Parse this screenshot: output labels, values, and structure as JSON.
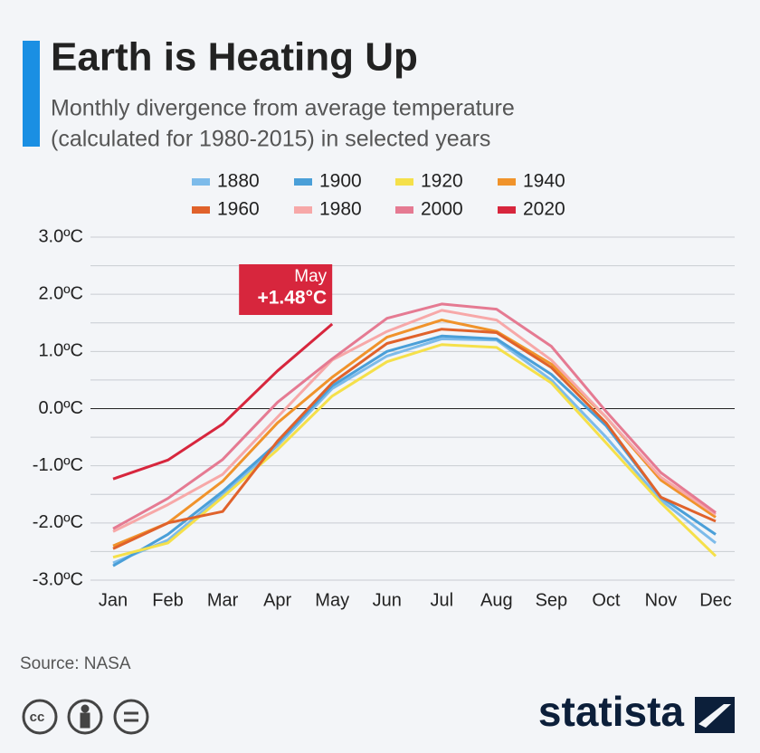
{
  "chart_data": {
    "type": "line",
    "title": "Earth is Heating Up",
    "subtitle": [
      "Monthly divergence from average temperature",
      "(calculated for 1980-2015) in selected years"
    ],
    "categories": [
      "Jan",
      "Feb",
      "Mar",
      "Apr",
      "May",
      "Jun",
      "Jul",
      "Aug",
      "Sep",
      "Oct",
      "Nov",
      "Dec"
    ],
    "series": [
      {
        "name": "1880",
        "color": "#7dbbea",
        "values": [
          -2.7,
          -2.3,
          -1.5,
          -0.65,
          0.35,
          0.92,
          1.22,
          1.2,
          0.5,
          -0.5,
          -1.6,
          -2.35
        ]
      },
      {
        "name": "1900",
        "color": "#4a9fd8",
        "values": [
          -2.75,
          -2.2,
          -1.45,
          -0.6,
          0.4,
          1.0,
          1.27,
          1.22,
          0.6,
          -0.3,
          -1.55,
          -2.2
        ]
      },
      {
        "name": "1920",
        "color": "#f5e04a",
        "values": [
          -2.6,
          -2.35,
          -1.55,
          -0.72,
          0.22,
          0.82,
          1.12,
          1.07,
          0.45,
          -0.6,
          -1.65,
          -2.58
        ]
      },
      {
        "name": "1940",
        "color": "#f0932b",
        "values": [
          -2.4,
          -2.0,
          -1.27,
          -0.25,
          0.55,
          1.25,
          1.55,
          1.35,
          0.78,
          -0.15,
          -1.25,
          -1.9
        ]
      },
      {
        "name": "1960",
        "color": "#e0622b",
        "values": [
          -2.45,
          -2.0,
          -1.8,
          -0.57,
          0.45,
          1.14,
          1.39,
          1.33,
          0.72,
          -0.25,
          -1.55,
          -1.97
        ]
      },
      {
        "name": "1980",
        "color": "#f7a8a8",
        "values": [
          -2.15,
          -1.68,
          -1.15,
          -0.15,
          0.85,
          1.35,
          1.72,
          1.55,
          0.85,
          -0.15,
          -1.2,
          -1.85
        ]
      },
      {
        "name": "2000",
        "color": "#e57a92",
        "values": [
          -2.1,
          -1.57,
          -0.89,
          0.11,
          0.87,
          1.58,
          1.83,
          1.74,
          1.09,
          -0.05,
          -1.12,
          -1.82
        ]
      },
      {
        "name": "2020",
        "color": "#d7263d",
        "values": [
          -1.23,
          -0.9,
          -0.27,
          0.66,
          1.48,
          null,
          null,
          null,
          null,
          null,
          null,
          null
        ]
      }
    ],
    "ylim": [
      -3,
      3
    ],
    "yticks": [
      {
        "value": 3,
        "label": "3.0ºC"
      },
      {
        "value": 2,
        "label": "2.0ºC"
      },
      {
        "value": 1,
        "label": "1.0ºC"
      },
      {
        "value": 0,
        "label": "0.0ºC"
      },
      {
        "value": -1,
        "label": "-1.0ºC"
      },
      {
        "value": -2,
        "label": "-2.0ºC"
      },
      {
        "value": -3,
        "label": "-3.0ºC"
      }
    ],
    "minor_grid": [
      2.5,
      1.5,
      0.5,
      -0.5,
      -1.5,
      -2.5
    ],
    "grid": true,
    "annotation": {
      "title": "May",
      "text": "+1.48°C"
    },
    "source": "Source: NASA",
    "brand": "statista"
  }
}
